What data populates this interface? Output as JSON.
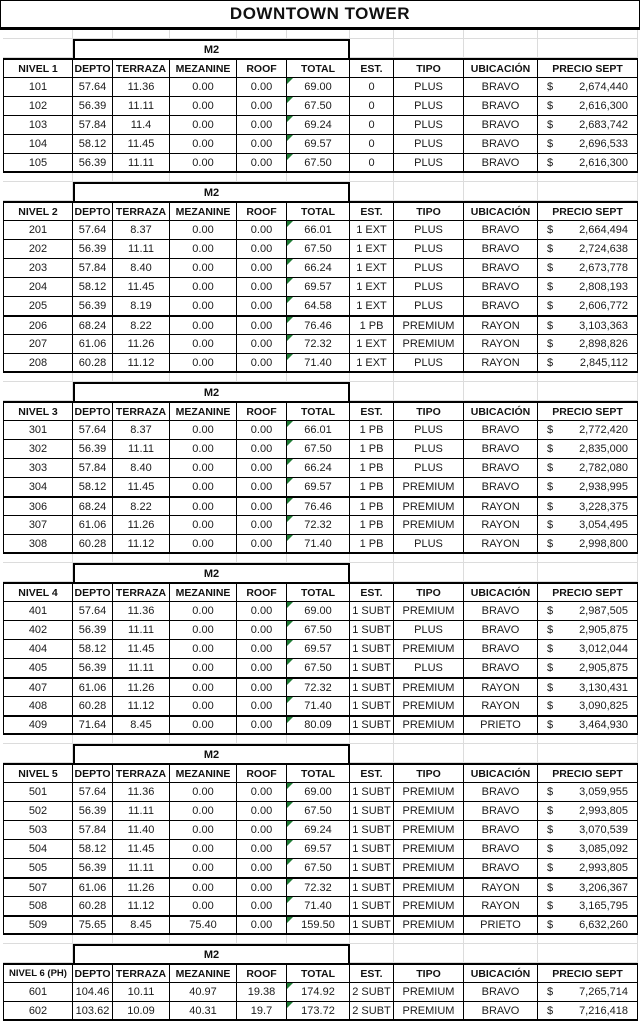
{
  "title": "DOWNTOWN TOWER",
  "m2_label": "M2",
  "m2_columns": [
    "DEPTO",
    "TERRAZA",
    "MEZANINE",
    "ROOF",
    "TOTAL"
  ],
  "right_columns": [
    "EST.",
    "TIPO",
    "UBICACIÓN",
    "PRECIO SEPT"
  ],
  "currency_symbol": "$",
  "colors": {
    "background": "#ffffff",
    "text": "#1a1a1a",
    "border": "#000000",
    "faint_grid": "#d9d9d9",
    "warning_triangle_green": "#1e7b34"
  },
  "levels": [
    {
      "name": "NIVEL 1",
      "thick_rows": [],
      "rows": [
        [
          "101",
          "57.64",
          "11.36",
          "0.00",
          "0.00",
          "69.00",
          "0",
          "PLUS",
          "BRAVO",
          "2,674,440"
        ],
        [
          "102",
          "56.39",
          "11.11",
          "0.00",
          "0.00",
          "67.50",
          "0",
          "PLUS",
          "BRAVO",
          "2,616,300"
        ],
        [
          "103",
          "57.84",
          "11.4",
          "0.00",
          "0.00",
          "69.24",
          "0",
          "PLUS",
          "BRAVO",
          "2,683,742"
        ],
        [
          "104",
          "58.12",
          "11.45",
          "0.00",
          "0.00",
          "69.57",
          "0",
          "PLUS",
          "BRAVO",
          "2,696,533"
        ],
        [
          "105",
          "56.39",
          "11.11",
          "0.00",
          "0.00",
          "67.50",
          "0",
          "PLUS",
          "BRAVO",
          "2,616,300"
        ]
      ]
    },
    {
      "name": "NIVEL 2",
      "thick_rows": [
        5
      ],
      "rows": [
        [
          "201",
          "57.64",
          "8.37",
          "0.00",
          "0.00",
          "66.01",
          "1 EXT",
          "PLUS",
          "BRAVO",
          "2,664,494"
        ],
        [
          "202",
          "56.39",
          "11.11",
          "0.00",
          "0.00",
          "67.50",
          "1 EXT",
          "PLUS",
          "BRAVO",
          "2,724,638"
        ],
        [
          "203",
          "57.84",
          "8.40",
          "0.00",
          "0.00",
          "66.24",
          "1 EXT",
          "PLUS",
          "BRAVO",
          "2,673,778"
        ],
        [
          "204",
          "58.12",
          "11.45",
          "0.00",
          "0.00",
          "69.57",
          "1 EXT",
          "PLUS",
          "BRAVO",
          "2,808,193"
        ],
        [
          "205",
          "56.39",
          "8.19",
          "0.00",
          "0.00",
          "64.58",
          "1 EXT",
          "PLUS",
          "BRAVO",
          "2,606,772"
        ],
        [
          "206",
          "68.24",
          "8.22",
          "0.00",
          "0.00",
          "76.46",
          "1 PB",
          "PREMIUM",
          "RAYON",
          "3,103,363"
        ],
        [
          "207",
          "61.06",
          "11.26",
          "0.00",
          "0.00",
          "72.32",
          "1 EXT",
          "PREMIUM",
          "RAYON",
          "2,898,826"
        ],
        [
          "208",
          "60.28",
          "11.12",
          "0.00",
          "0.00",
          "71.40",
          "1 EXT",
          "PLUS",
          "RAYON",
          "2,845,112"
        ]
      ]
    },
    {
      "name": "NIVEL 3",
      "thick_rows": [
        4
      ],
      "rows": [
        [
          "301",
          "57.64",
          "8.37",
          "0.00",
          "0.00",
          "66.01",
          "1 PB",
          "PLUS",
          "BRAVO",
          "2,772,420"
        ],
        [
          "302",
          "56.39",
          "11.11",
          "0.00",
          "0.00",
          "67.50",
          "1 PB",
          "PLUS",
          "BRAVO",
          "2,835,000"
        ],
        [
          "303",
          "57.84",
          "8.40",
          "0.00",
          "0.00",
          "66.24",
          "1 PB",
          "PLUS",
          "BRAVO",
          "2,782,080"
        ],
        [
          "304",
          "58.12",
          "11.45",
          "0.00",
          "0.00",
          "69.57",
          "1 PB",
          "PREMIUM",
          "BRAVO",
          "2,938,995"
        ],
        [
          "306",
          "68.24",
          "8.22",
          "0.00",
          "0.00",
          "76.46",
          "1 PB",
          "PREMIUM",
          "RAYON",
          "3,228,375"
        ],
        [
          "307",
          "61.06",
          "11.26",
          "0.00",
          "0.00",
          "72.32",
          "1 PB",
          "PREMIUM",
          "RAYON",
          "3,054,495"
        ],
        [
          "308",
          "60.28",
          "11.12",
          "0.00",
          "0.00",
          "71.40",
          "1 PB",
          "PLUS",
          "RAYON",
          "2,998,800"
        ]
      ]
    },
    {
      "name": "NIVEL 4",
      "thick_rows": [
        4,
        6
      ],
      "rows": [
        [
          "401",
          "57.64",
          "11.36",
          "0.00",
          "0.00",
          "69.00",
          "1 SUBT",
          "PREMIUM",
          "BRAVO",
          "2,987,505"
        ],
        [
          "402",
          "56.39",
          "11.11",
          "0.00",
          "0.00",
          "67.50",
          "1 SUBT",
          "PLUS",
          "BRAVO",
          "2,905,875"
        ],
        [
          "404",
          "58.12",
          "11.45",
          "0.00",
          "0.00",
          "69.57",
          "1 SUBT",
          "PREMIUM",
          "BRAVO",
          "3,012,044"
        ],
        [
          "405",
          "56.39",
          "11.11",
          "0.00",
          "0.00",
          "67.50",
          "1 SUBT",
          "PLUS",
          "BRAVO",
          "2,905,875"
        ],
        [
          "407",
          "61.06",
          "11.26",
          "0.00",
          "0.00",
          "72.32",
          "1 SUBT",
          "PREMIUM",
          "RAYON",
          "3,130,431"
        ],
        [
          "408",
          "60.28",
          "11.12",
          "0.00",
          "0.00",
          "71.40",
          "1 SUBT",
          "PREMIUM",
          "RAYON",
          "3,090,825"
        ],
        [
          "409",
          "71.64",
          "8.45",
          "0.00",
          "0.00",
          "80.09",
          "1 SUBT",
          "PREMIUM",
          "PRIETO",
          "3,464,930"
        ]
      ]
    },
    {
      "name": "NIVEL 5",
      "thick_rows": [
        5,
        7
      ],
      "rows": [
        [
          "501",
          "57.64",
          "11.36",
          "0.00",
          "0.00",
          "69.00",
          "1 SUBT",
          "PREMIUM",
          "BRAVO",
          "3,059,955"
        ],
        [
          "502",
          "56.39",
          "11.11",
          "0.00",
          "0.00",
          "67.50",
          "1 SUBT",
          "PREMIUM",
          "BRAVO",
          "2,993,805"
        ],
        [
          "503",
          "57.84",
          "11.40",
          "0.00",
          "0.00",
          "69.24",
          "1 SUBT",
          "PREMIUM",
          "BRAVO",
          "3,070,539"
        ],
        [
          "504",
          "58.12",
          "11.45",
          "0.00",
          "0.00",
          "69.57",
          "1 SUBT",
          "PREMIUM",
          "BRAVO",
          "3,085,092"
        ],
        [
          "505",
          "56.39",
          "11.11",
          "0.00",
          "0.00",
          "67.50",
          "1 SUBT",
          "PREMIUM",
          "BRAVO",
          "2,993,805"
        ],
        [
          "507",
          "61.06",
          "11.26",
          "0.00",
          "0.00",
          "72.32",
          "1 SUBT",
          "PREMIUM",
          "RAYON",
          "3,206,367"
        ],
        [
          "508",
          "60.28",
          "11.12",
          "0.00",
          "0.00",
          "71.40",
          "1 SUBT",
          "PREMIUM",
          "RAYON",
          "3,165,795"
        ],
        [
          "509",
          "75.65",
          "8.45",
          "75.40",
          "0.00",
          "159.50",
          "1 SUBT",
          "PREMIUM",
          "PRIETO",
          "6,632,260"
        ]
      ]
    },
    {
      "name": "NIVEL 6 (PH)",
      "thick_rows": [],
      "rows": [
        [
          "601",
          "104.46",
          "10.11",
          "40.97",
          "19.38",
          "174.92",
          "2 SUBT",
          "PREMIUM",
          "BRAVO",
          "7,265,714"
        ],
        [
          "602",
          "103.62",
          "10.09",
          "40.31",
          "19.7",
          "173.72",
          "2 SUBT",
          "PREMIUM",
          "BRAVO",
          "7,216,418"
        ]
      ]
    }
  ]
}
